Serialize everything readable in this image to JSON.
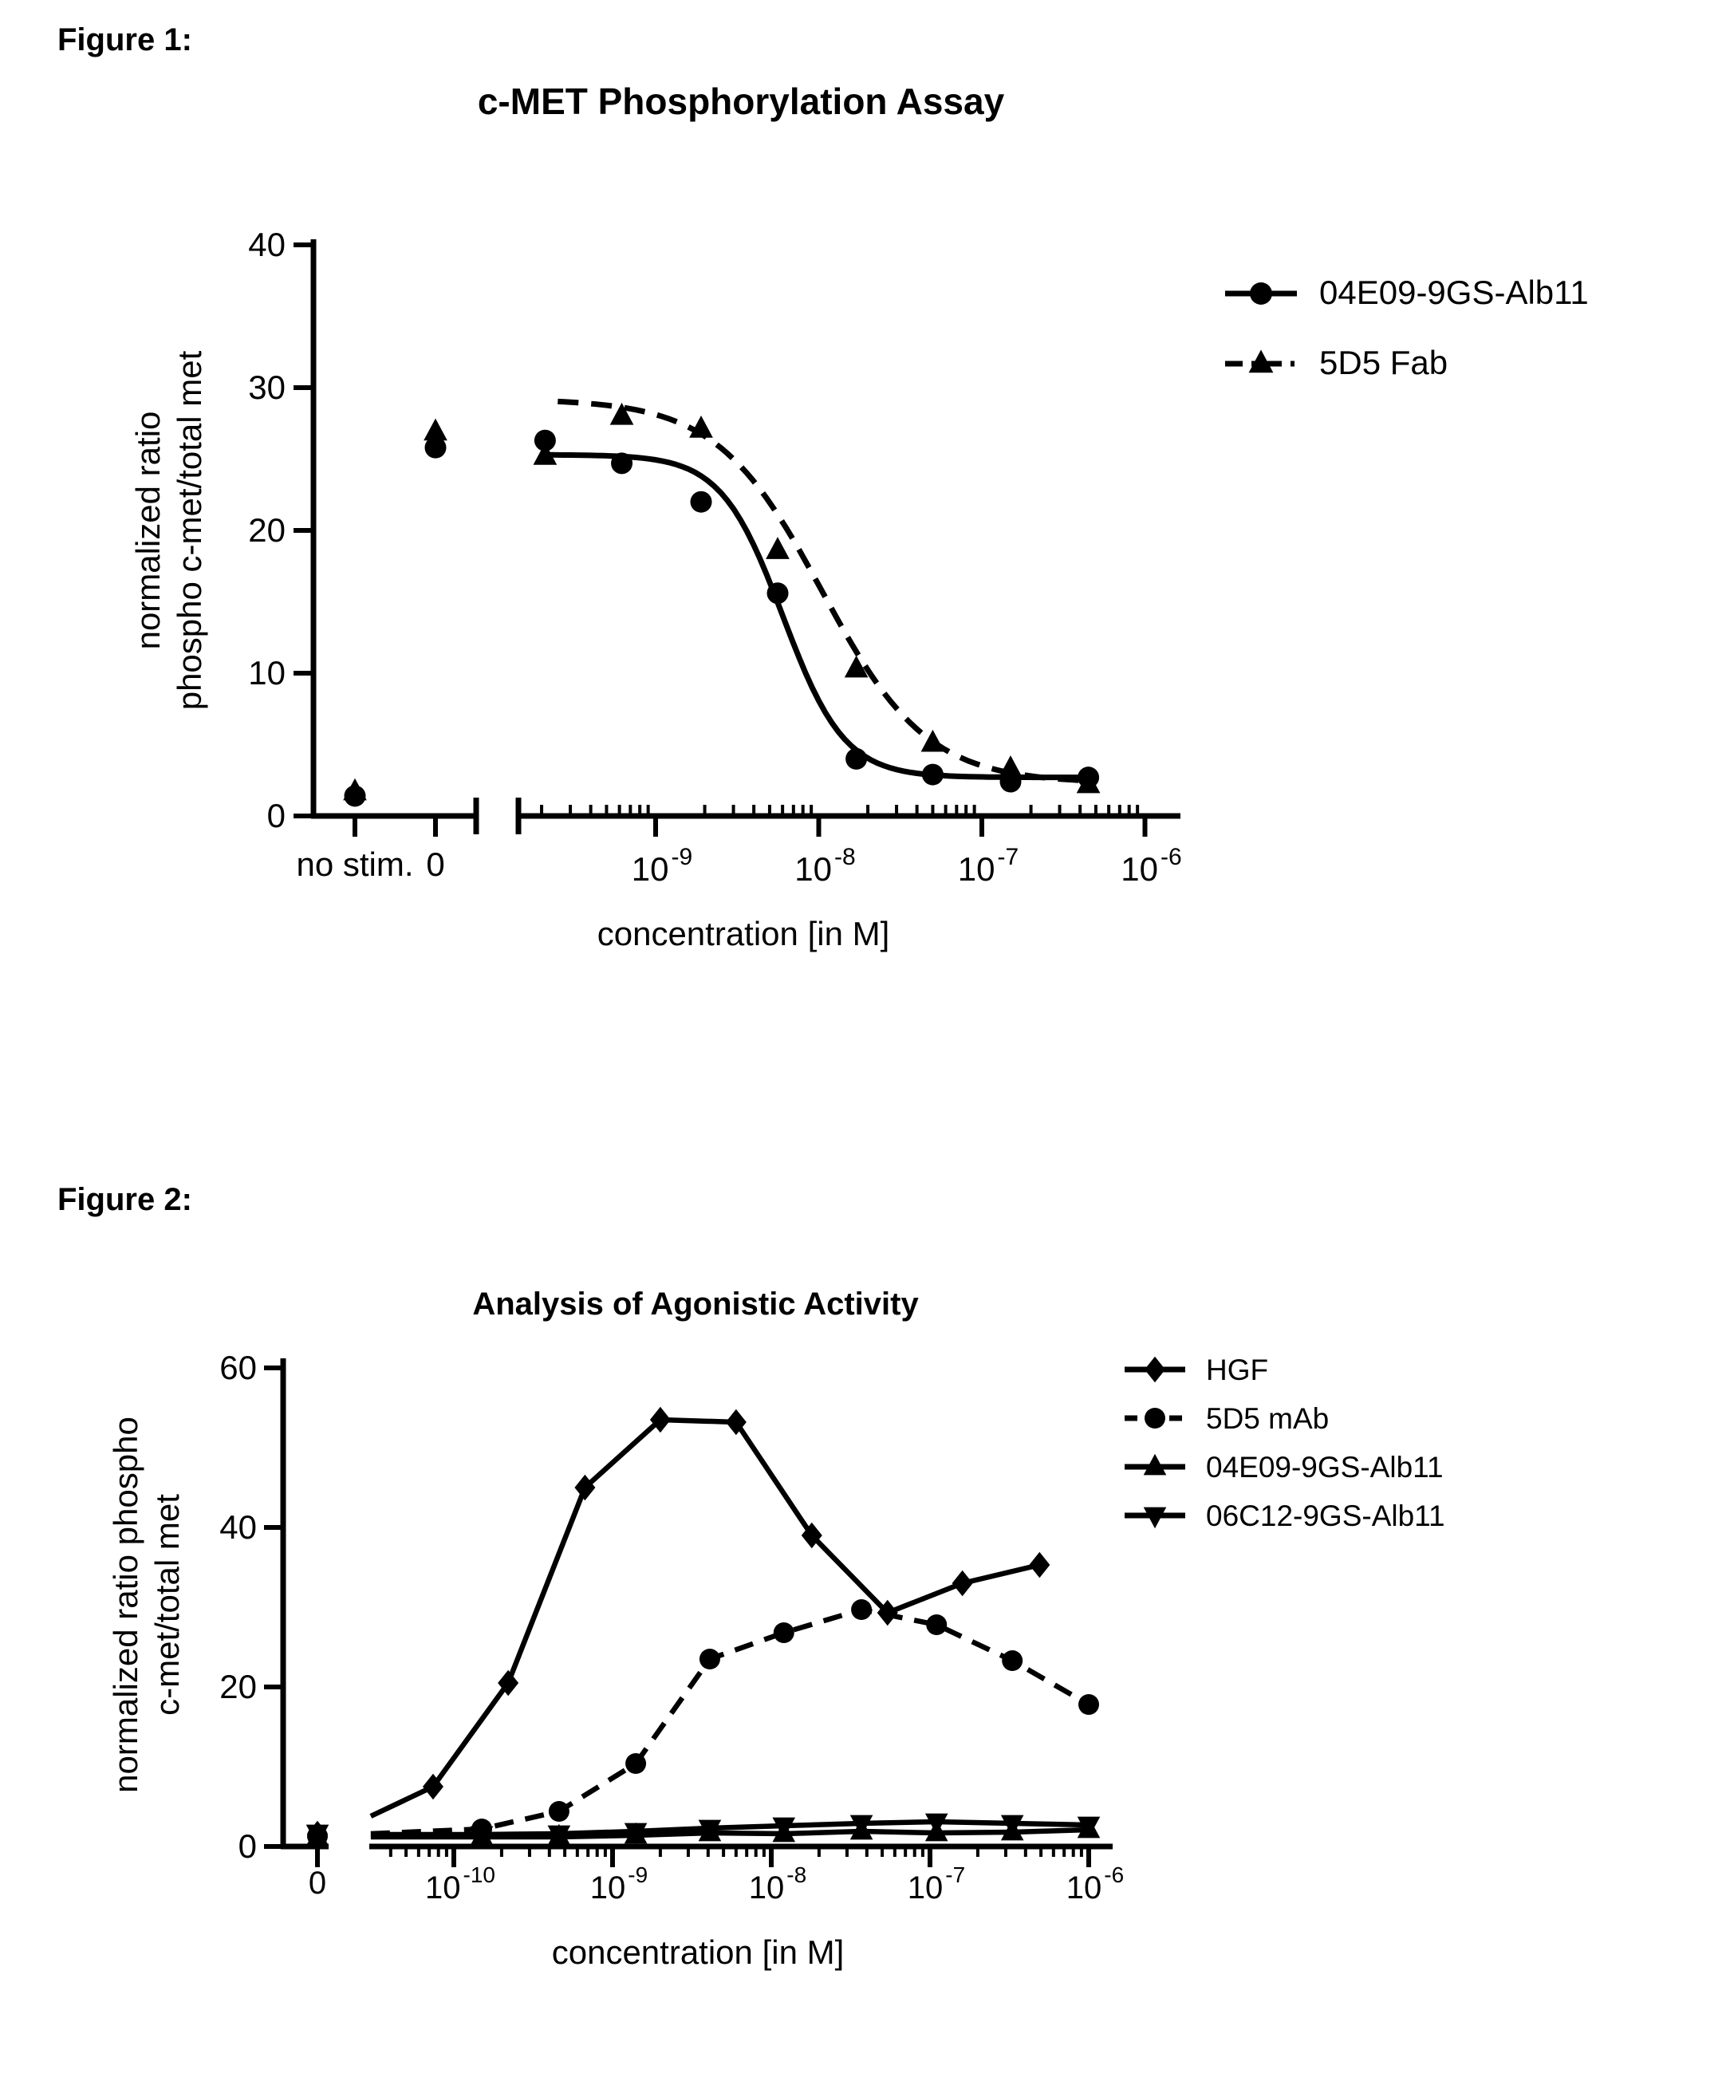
{
  "page": {
    "figure1_label": "Figure 1:",
    "figure2_label": "Figure 2:",
    "background_color": "#ffffff",
    "ink_color": "#000000"
  },
  "chart_data": [
    {
      "id": "fig1",
      "type": "line",
      "title": "c-MET Phosphorylation Assay",
      "xlabel": "concentration [in M]",
      "ylabel_lines": [
        "normalized ratio",
        "phospho c-met/total met"
      ],
      "ylim": [
        0,
        40
      ],
      "yticks": [
        0,
        10,
        20,
        30,
        40
      ],
      "x_axis": {
        "categories": [
          "no stim.",
          "0"
        ],
        "decade_exponents": [
          -9,
          -8,
          -7,
          -6
        ],
        "has_axis_break": true,
        "minor_ticks": "up"
      },
      "legend": [
        {
          "label": "04E09-9GS-Alb11",
          "marker": "circle",
          "line": "solid"
        },
        {
          "label": "5D5 Fab",
          "marker": "triangle-up",
          "line": "dashdot"
        }
      ],
      "series": [
        {
          "name": "04E09-9GS-Alb11",
          "marker": "circle",
          "line": "solid",
          "cat_points": [
            {
              "category": "no stim.",
              "y": 1.4
            },
            {
              "category": "0",
              "y": 25.8
            }
          ],
          "points": [
            [
              2.1e-10,
              26.3
            ],
            [
              6.2e-10,
              24.7
            ],
            [
              1.9e-09,
              22.0
            ],
            [
              5.6e-09,
              15.6
            ],
            [
              1.7e-08,
              4.0
            ],
            [
              5e-08,
              2.9
            ],
            [
              1.5e-07,
              2.4
            ],
            [
              4.5e-07,
              2.7
            ]
          ],
          "fit_curve": {
            "top": 25.3,
            "bottom": 2.7,
            "logec50": -8.22,
            "hill": 2.3,
            "log_range": [
              -9.68,
              -6.33
            ]
          }
        },
        {
          "name": "5D5 Fab",
          "marker": "triangle-up",
          "line": "dashed",
          "cat_points": [
            {
              "category": "no stim.",
              "y": 1.7
            },
            {
              "category": "0",
              "y": 26.9
            }
          ],
          "points": [
            [
              2.1e-10,
              25.2
            ],
            [
              6.2e-10,
              28.0
            ],
            [
              1.9e-09,
              27.1
            ],
            [
              5.6e-09,
              18.6
            ],
            [
              1.7e-08,
              10.3
            ],
            [
              5e-08,
              5.1
            ],
            [
              1.5e-07,
              3.3
            ],
            [
              4.5e-07,
              2.2
            ]
          ],
          "fit_curve": {
            "top": 29.2,
            "bottom": 2.3,
            "logec50": -7.98,
            "hill": 1.35,
            "log_range": [
              -9.6,
              -6.3
            ]
          }
        }
      ]
    },
    {
      "id": "fig2",
      "type": "line",
      "title": "Analysis of Agonistic Activity",
      "xlabel": "concentration [in M]",
      "ylabel_lines": [
        "normalized ratio phospho",
        "c-met/total met"
      ],
      "ylim": [
        0,
        60
      ],
      "yticks": [
        0,
        20,
        40,
        60
      ],
      "x_axis": {
        "categories": [
          "0"
        ],
        "decade_exponents": [
          -10,
          -9,
          -8,
          -7,
          -6
        ],
        "has_axis_break": true,
        "minor_ticks": "down"
      },
      "legend": [
        {
          "label": "HGF",
          "marker": "diamond",
          "line": "solid"
        },
        {
          "label": "5D5 mAb",
          "marker": "circle",
          "line": "dashed"
        },
        {
          "label": "04E09-9GS-Alb11",
          "marker": "triangle-up",
          "line": "solid"
        },
        {
          "label": "06C12-9GS-Alb11",
          "marker": "triangle-down",
          "line": "solid"
        }
      ],
      "series": [
        {
          "name": "HGF",
          "marker": "diamond",
          "line": "solid",
          "cat_points": [
            {
              "category": "0",
              "y": 1.6
            }
          ],
          "edge_point": [
            3e-11,
            3.8
          ],
          "points": [
            [
              7.4e-11,
              7.5
            ],
            [
              2.2e-10,
              20.5
            ],
            [
              6.7e-10,
              45.0
            ],
            [
              2e-09,
              53.5
            ],
            [
              6e-09,
              53.2
            ],
            [
              1.8e-08,
              39.0
            ],
            [
              5.4e-08,
              29.3
            ],
            [
              1.6e-07,
              33.0
            ],
            [
              4.9e-07,
              35.3
            ]
          ]
        },
        {
          "name": "5D5 mAb",
          "marker": "circle",
          "line": "dashed",
          "cat_points": [
            {
              "category": "0",
              "y": 1.3
            }
          ],
          "edge_point": [
            3e-11,
            1.6
          ],
          "points": [
            [
              1.5e-10,
              2.2
            ],
            [
              4.6e-10,
              4.4
            ],
            [
              1.4e-09,
              10.4
            ],
            [
              4.1e-09,
              23.5
            ],
            [
              1.2e-08,
              26.8
            ],
            [
              3.7e-08,
              29.7
            ],
            [
              1.1e-07,
              27.8
            ],
            [
              3.3e-07,
              23.3
            ],
            [
              1e-06,
              17.8
            ]
          ]
        },
        {
          "name": "04E09-9GS-Alb11",
          "marker": "triangle-up",
          "line": "solid",
          "cat_points": [
            {
              "category": "0",
              "y": 1.1
            }
          ],
          "edge_point": [
            3e-11,
            1.2
          ],
          "points": [
            [
              1.5e-10,
              1.2
            ],
            [
              4.6e-10,
              1.2
            ],
            [
              1.4e-09,
              1.4
            ],
            [
              4.1e-09,
              1.7
            ],
            [
              1.2e-08,
              1.6
            ],
            [
              3.7e-08,
              1.9
            ],
            [
              1.1e-07,
              1.7
            ],
            [
              3.3e-07,
              1.8
            ],
            [
              1e-06,
              2.1
            ]
          ]
        },
        {
          "name": "06C12-9GS-Alb11",
          "marker": "triangle-down",
          "line": "solid",
          "cat_points": [
            {
              "category": "0",
              "y": 1.7
            }
          ],
          "edge_point": [
            3e-11,
            1.5
          ],
          "points": [
            [
              1.5e-10,
              1.5
            ],
            [
              4.6e-10,
              1.6
            ],
            [
              1.4e-09,
              1.9
            ],
            [
              4.1e-09,
              2.3
            ],
            [
              1.2e-08,
              2.6
            ],
            [
              3.7e-08,
              2.9
            ],
            [
              1.1e-07,
              3.1
            ],
            [
              3.3e-07,
              2.9
            ],
            [
              1e-06,
              2.7
            ]
          ]
        }
      ]
    }
  ]
}
